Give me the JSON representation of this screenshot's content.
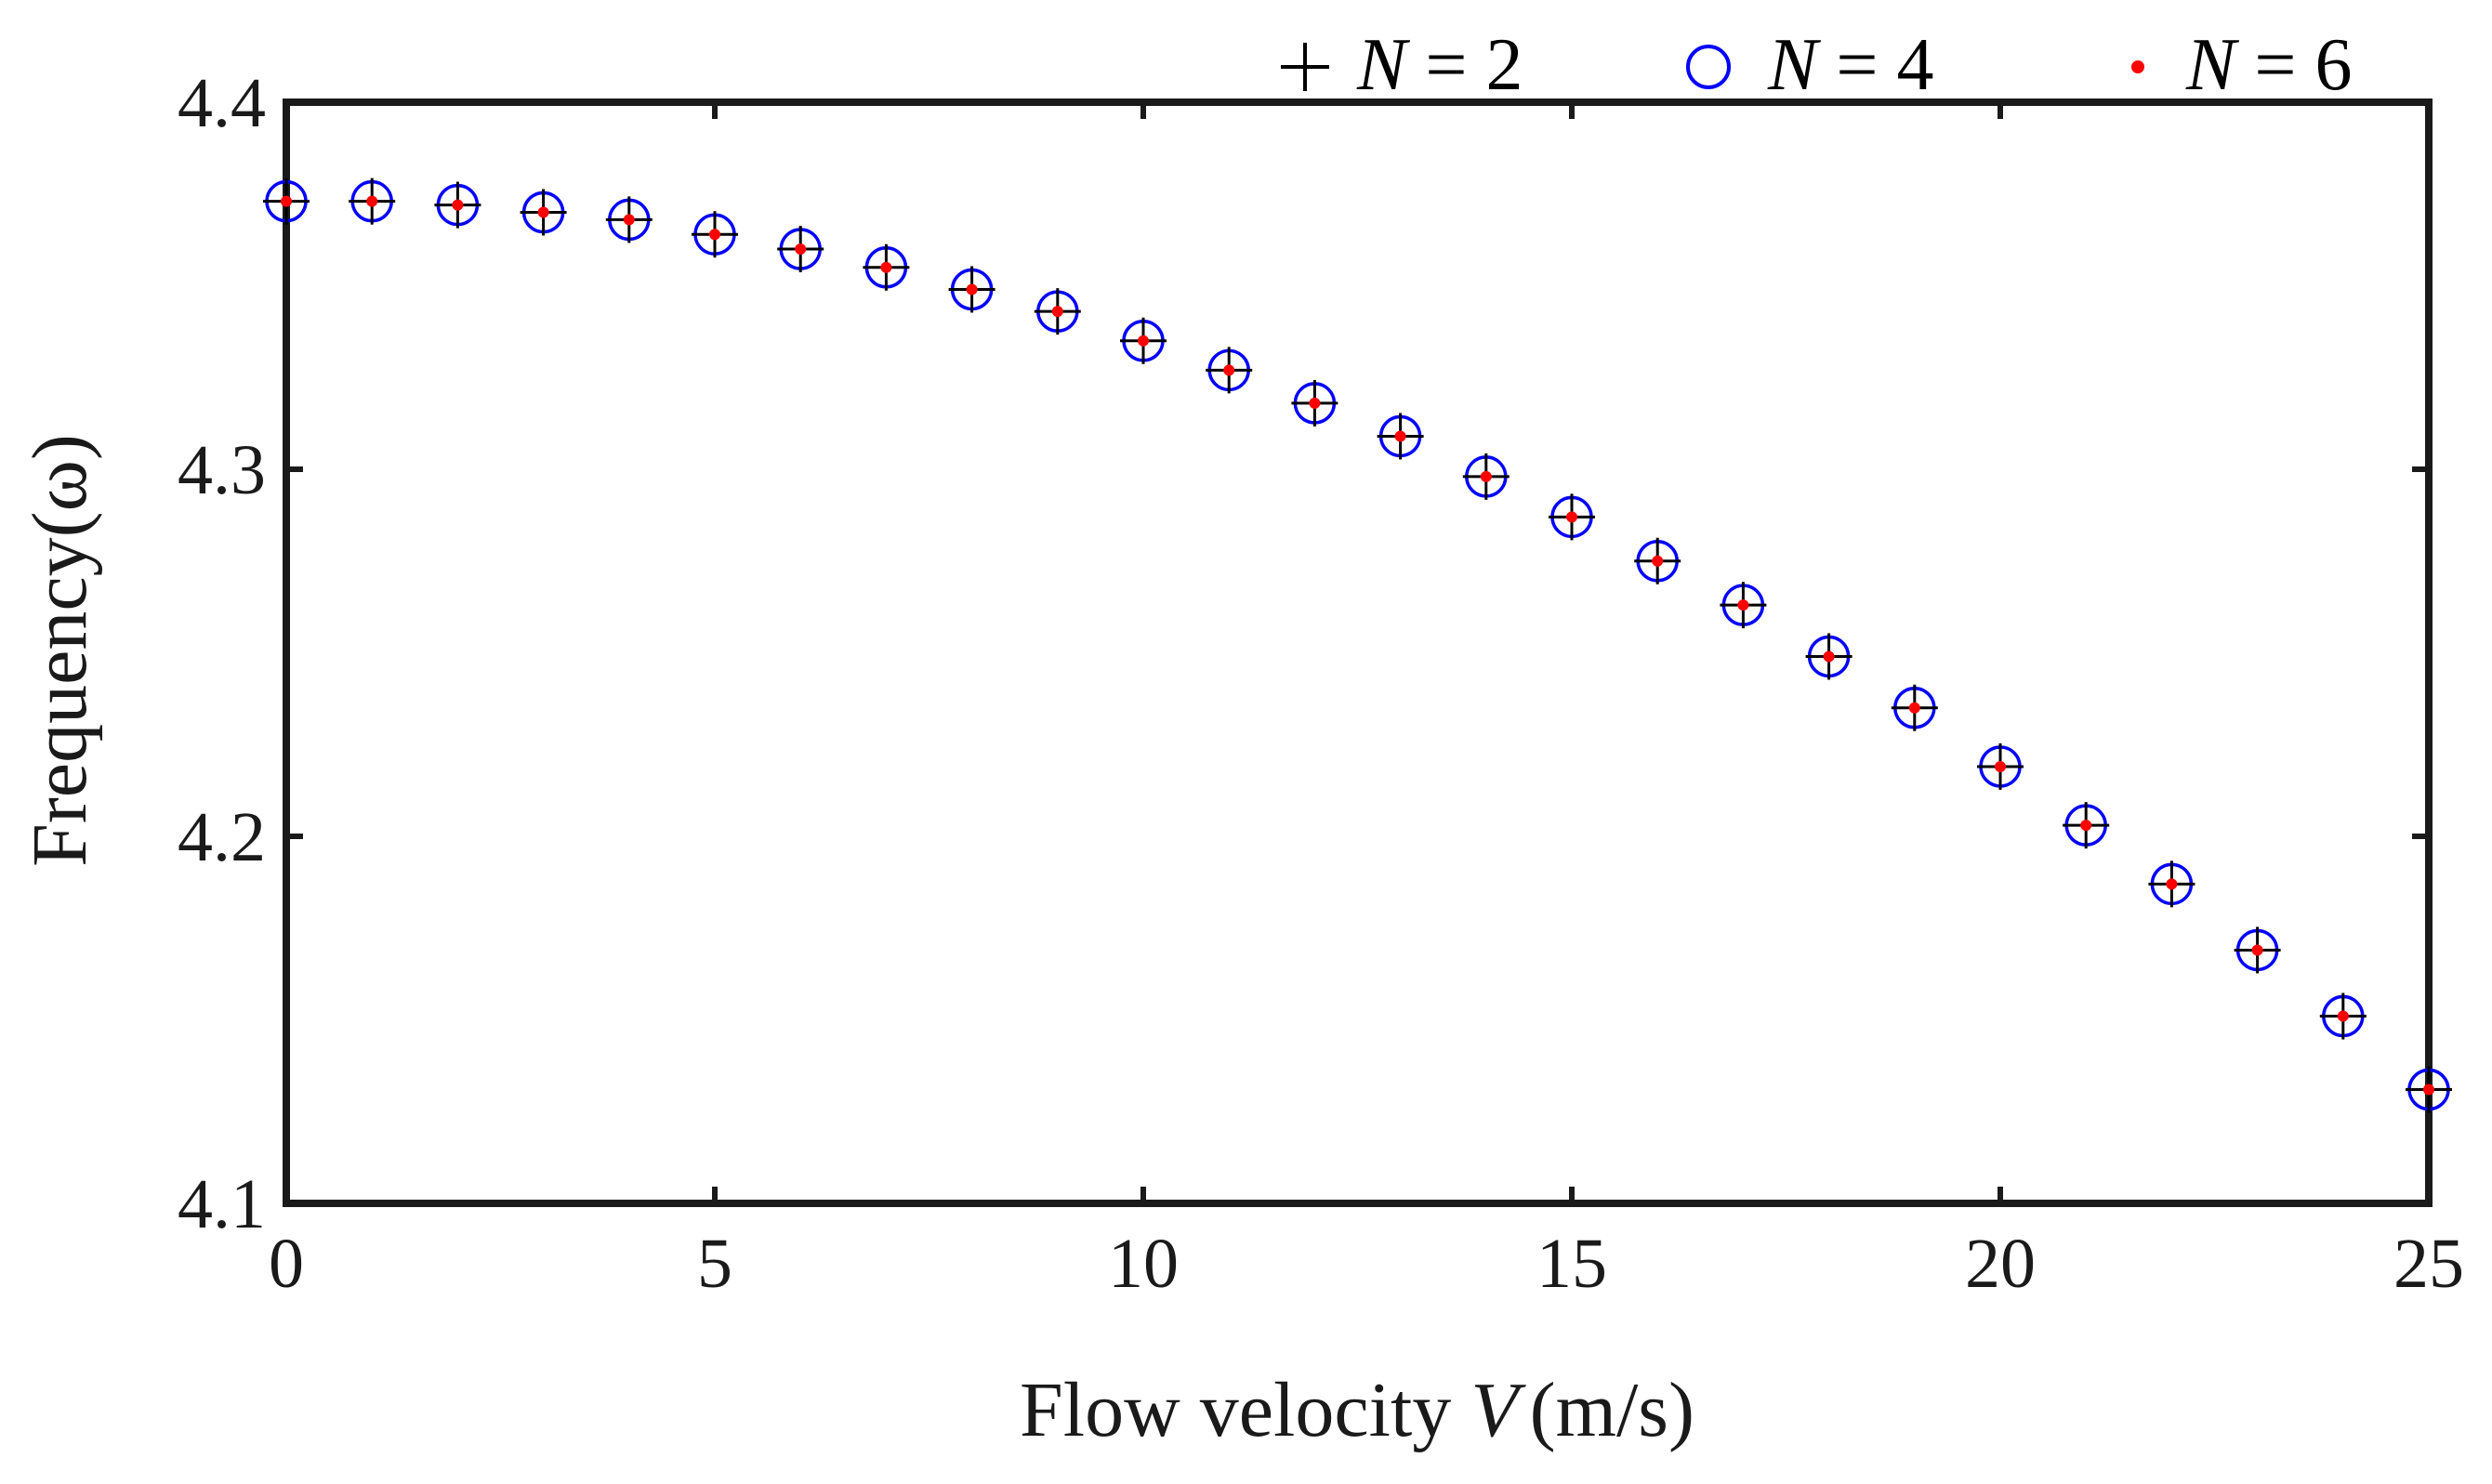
{
  "chart_data": {
    "type": "scatter",
    "title": "",
    "xlabel_prefix": "Flow velocity ",
    "xlabel_var": "V",
    "xlabel_unit": "(m/s)",
    "ylabel": "Frequency(ω)",
    "xlim": [
      0,
      25
    ],
    "ylim": [
      4.1,
      4.4
    ],
    "xticks": [
      0,
      5,
      10,
      15,
      20,
      25
    ],
    "yticks": [
      4.1,
      4.2,
      4.3,
      4.4
    ],
    "ytick_labels": [
      "4.1",
      "4.2",
      "4.3",
      "4.4"
    ],
    "grid": false,
    "legend_position": "top-right, above axes",
    "x": [
      0,
      1,
      2,
      3,
      4,
      5,
      6,
      7,
      8,
      9,
      10,
      11,
      12,
      13,
      14,
      15,
      16,
      17,
      18,
      19,
      20,
      21,
      22,
      23,
      24,
      25
    ],
    "series": [
      {
        "name": "N = 2",
        "legend_var": "N",
        "legend_eq": "= 2",
        "marker": "plus",
        "color": "#000000",
        "values": [
          4.373,
          4.373,
          4.372,
          4.37,
          4.368,
          4.364,
          4.36,
          4.355,
          4.349,
          4.343,
          4.335,
          4.327,
          4.318,
          4.309,
          4.298,
          4.287,
          4.275,
          4.263,
          4.249,
          4.235,
          4.219,
          4.203,
          4.187,
          4.169,
          4.151,
          4.131
        ]
      },
      {
        "name": "N = 4",
        "legend_var": "N",
        "legend_eq": "= 4",
        "marker": "circle",
        "color": "#0000ff",
        "values": [
          4.373,
          4.373,
          4.372,
          4.37,
          4.368,
          4.364,
          4.36,
          4.355,
          4.349,
          4.343,
          4.335,
          4.327,
          4.318,
          4.309,
          4.298,
          4.287,
          4.275,
          4.263,
          4.249,
          4.235,
          4.219,
          4.203,
          4.187,
          4.169,
          4.151,
          4.131
        ]
      },
      {
        "name": "N = 6",
        "legend_var": "N",
        "legend_eq": "= 6",
        "marker": "dot",
        "color": "#ff0000",
        "values": [
          4.373,
          4.373,
          4.372,
          4.37,
          4.368,
          4.364,
          4.36,
          4.355,
          4.349,
          4.343,
          4.335,
          4.327,
          4.318,
          4.309,
          4.298,
          4.287,
          4.275,
          4.263,
          4.249,
          4.235,
          4.219,
          4.203,
          4.187,
          4.169,
          4.151,
          4.131
        ]
      }
    ]
  }
}
